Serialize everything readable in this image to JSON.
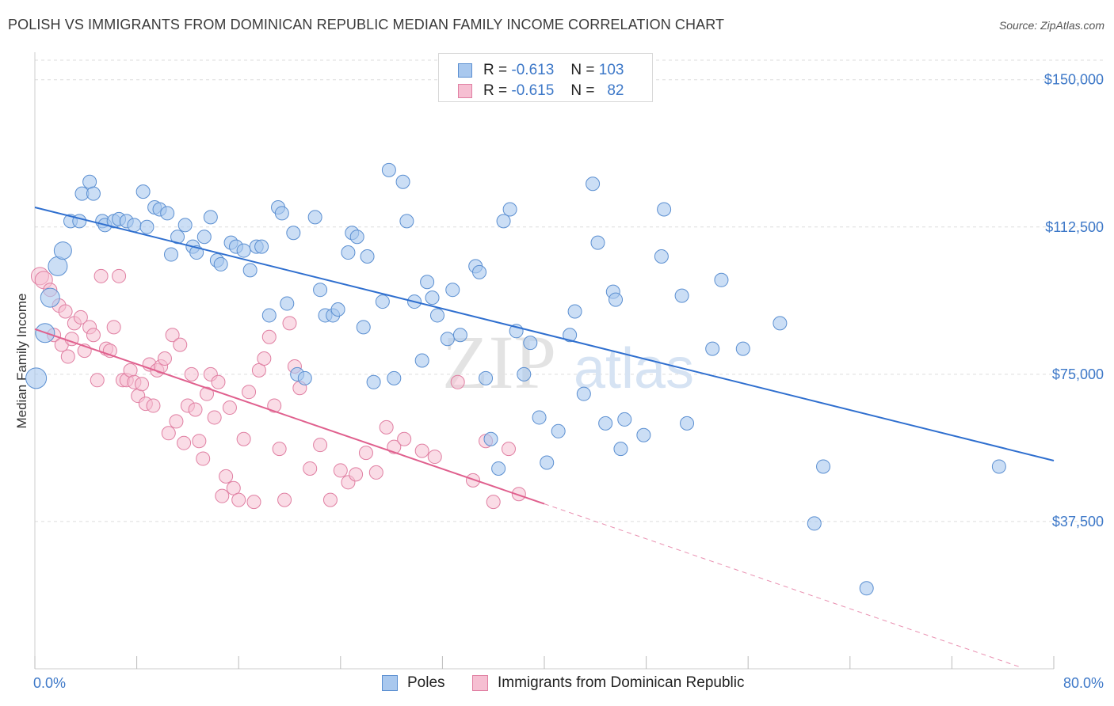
{
  "title": "POLISH VS IMMIGRANTS FROM DOMINICAN REPUBLIC MEDIAN FAMILY INCOME CORRELATION CHART",
  "source": "Source: ZipAtlas.com",
  "watermark": {
    "zip": "ZIP",
    "atlas": "atlas"
  },
  "stats": {
    "poles": {
      "r_label": "R =",
      "r_value": "-0.613",
      "n_label": "N =",
      "n_value": "103"
    },
    "dominican": {
      "r_label": "R =",
      "r_value": "-0.615",
      "n_label": "N =",
      "n_value": "82"
    }
  },
  "legend": {
    "poles": "Poles",
    "dominican": "Immigrants from Dominican Republic"
  },
  "colors": {
    "poles_fill": "#a9c8ee",
    "poles_stroke": "#5b8fd1",
    "poles_line": "#2f6fcf",
    "dom_fill": "#f6bfd2",
    "dom_stroke": "#e07fa2",
    "dom_line": "#e0608e",
    "tick_text": "#3d78c8",
    "grid": "#dddddd"
  },
  "chart_data": {
    "type": "scatter",
    "title": "POLISH VS IMMIGRANTS FROM DOMINICAN REPUBLIC MEDIAN FAMILY INCOME CORRELATION CHART",
    "xlabel": "",
    "ylabel": "Median Family Income",
    "xlim": [
      0,
      80
    ],
    "ylim": [
      0,
      157000
    ],
    "x_tick_labels": [
      "0.0%",
      "80.0%"
    ],
    "y_ticks": [
      37500,
      75000,
      112500,
      150000
    ],
    "y_tick_labels": [
      "$37,500",
      "$75,000",
      "$112,500",
      "$150,000"
    ],
    "grid": true,
    "series": [
      {
        "name": "Poles",
        "trend": {
          "x": [
            0,
            80
          ],
          "y": [
            117500,
            53000
          ]
        },
        "points": [
          [
            0.1,
            74000
          ],
          [
            0.8,
            85500
          ],
          [
            1.2,
            94500
          ],
          [
            1.8,
            102500
          ],
          [
            2.2,
            106500
          ],
          [
            2.8,
            114000
          ],
          [
            3.5,
            114000
          ],
          [
            3.7,
            121000
          ],
          [
            4.3,
            124000
          ],
          [
            4.6,
            121000
          ],
          [
            5.3,
            114000
          ],
          [
            5.5,
            113000
          ],
          [
            6.2,
            114000
          ],
          [
            6.6,
            114500
          ],
          [
            7.2,
            114000
          ],
          [
            7.8,
            113000
          ],
          [
            8.5,
            121500
          ],
          [
            8.8,
            112500
          ],
          [
            9.4,
            117500
          ],
          [
            9.8,
            117000
          ],
          [
            10.4,
            116000
          ],
          [
            10.7,
            105500
          ],
          [
            11.2,
            110000
          ],
          [
            11.8,
            113000
          ],
          [
            12.4,
            107500
          ],
          [
            12.7,
            106000
          ],
          [
            13.3,
            110000
          ],
          [
            13.8,
            115000
          ],
          [
            14.3,
            104000
          ],
          [
            14.6,
            103000
          ],
          [
            15.4,
            108500
          ],
          [
            15.8,
            107500
          ],
          [
            16.4,
            106500
          ],
          [
            16.9,
            101500
          ],
          [
            17.4,
            107500
          ],
          [
            17.8,
            107500
          ],
          [
            18.4,
            90000
          ],
          [
            19.1,
            117500
          ],
          [
            19.4,
            116000
          ],
          [
            19.8,
            93000
          ],
          [
            20.3,
            111000
          ],
          [
            20.6,
            75000
          ],
          [
            21.2,
            74000
          ],
          [
            22.0,
            115000
          ],
          [
            22.4,
            96500
          ],
          [
            22.8,
            90000
          ],
          [
            23.4,
            90000
          ],
          [
            23.8,
            91500
          ],
          [
            24.6,
            106000
          ],
          [
            24.9,
            111000
          ],
          [
            25.3,
            110000
          ],
          [
            25.8,
            87000
          ],
          [
            26.1,
            105000
          ],
          [
            26.6,
            73000
          ],
          [
            27.3,
            93500
          ],
          [
            27.8,
            127000
          ],
          [
            28.2,
            74000
          ],
          [
            28.9,
            124000
          ],
          [
            29.2,
            114000
          ],
          [
            29.8,
            93500
          ],
          [
            30.4,
            78500
          ],
          [
            30.8,
            98500
          ],
          [
            31.2,
            94500
          ],
          [
            31.6,
            90000
          ],
          [
            32.4,
            84000
          ],
          [
            32.8,
            96500
          ],
          [
            33.4,
            85000
          ],
          [
            34.6,
            102500
          ],
          [
            34.9,
            101000
          ],
          [
            35.4,
            74000
          ],
          [
            35.8,
            58500
          ],
          [
            36.4,
            51000
          ],
          [
            36.8,
            114000
          ],
          [
            37.3,
            117000
          ],
          [
            37.8,
            86000
          ],
          [
            38.4,
            75000
          ],
          [
            38.9,
            83000
          ],
          [
            39.6,
            64000
          ],
          [
            40.2,
            52500
          ],
          [
            41.1,
            60500
          ],
          [
            42.0,
            85000
          ],
          [
            42.4,
            91000
          ],
          [
            43.1,
            70000
          ],
          [
            43.8,
            123500
          ],
          [
            44.2,
            108500
          ],
          [
            44.8,
            62500
          ],
          [
            45.4,
            96000
          ],
          [
            45.6,
            94000
          ],
          [
            46.0,
            56000
          ],
          [
            46.3,
            63500
          ],
          [
            47.8,
            59500
          ],
          [
            49.2,
            105000
          ],
          [
            49.4,
            117000
          ],
          [
            50.8,
            95000
          ],
          [
            51.2,
            62500
          ],
          [
            53.2,
            81500
          ],
          [
            53.9,
            99000
          ],
          [
            55.6,
            81500
          ],
          [
            58.5,
            88000
          ],
          [
            61.2,
            37000
          ],
          [
            61.9,
            51500
          ],
          [
            65.3,
            20500
          ],
          [
            75.7,
            51500
          ]
        ]
      },
      {
        "name": "Immigrants from Dominican Republic",
        "trend": {
          "x": [
            0,
            40
          ],
          "y": [
            86500,
            42000
          ]
        },
        "trend_dashed": {
          "x": [
            40,
            80
          ],
          "y": [
            42000,
            -2500
          ]
        },
        "points": [
          [
            0.4,
            100000
          ],
          [
            0.7,
            99000
          ],
          [
            1.2,
            96500
          ],
          [
            1.5,
            85000
          ],
          [
            1.9,
            92500
          ],
          [
            2.1,
            82500
          ],
          [
            2.4,
            91000
          ],
          [
            2.6,
            79500
          ],
          [
            2.9,
            84000
          ],
          [
            3.1,
            88000
          ],
          [
            3.6,
            89500
          ],
          [
            3.9,
            81000
          ],
          [
            4.3,
            87000
          ],
          [
            4.6,
            85000
          ],
          [
            4.9,
            73500
          ],
          [
            5.2,
            100000
          ],
          [
            5.6,
            81500
          ],
          [
            5.9,
            81000
          ],
          [
            6.2,
            87000
          ],
          [
            6.6,
            100000
          ],
          [
            6.9,
            73500
          ],
          [
            7.2,
            73500
          ],
          [
            7.5,
            76000
          ],
          [
            7.8,
            73000
          ],
          [
            8.1,
            69500
          ],
          [
            8.4,
            72500
          ],
          [
            8.7,
            67500
          ],
          [
            9.0,
            77500
          ],
          [
            9.3,
            67000
          ],
          [
            9.6,
            76000
          ],
          [
            9.9,
            77000
          ],
          [
            10.2,
            79000
          ],
          [
            10.5,
            60000
          ],
          [
            10.8,
            85000
          ],
          [
            11.1,
            63000
          ],
          [
            11.4,
            82500
          ],
          [
            11.7,
            57500
          ],
          [
            12.0,
            67000
          ],
          [
            12.3,
            75000
          ],
          [
            12.6,
            66000
          ],
          [
            12.9,
            58000
          ],
          [
            13.2,
            53500
          ],
          [
            13.5,
            70000
          ],
          [
            13.8,
            75000
          ],
          [
            14.1,
            64000
          ],
          [
            14.4,
            73000
          ],
          [
            14.7,
            44000
          ],
          [
            15.0,
            49000
          ],
          [
            15.3,
            66500
          ],
          [
            15.6,
            46000
          ],
          [
            16.0,
            43000
          ],
          [
            16.4,
            58500
          ],
          [
            16.8,
            70500
          ],
          [
            17.2,
            42500
          ],
          [
            17.6,
            76000
          ],
          [
            18.0,
            79000
          ],
          [
            18.4,
            84500
          ],
          [
            18.8,
            67000
          ],
          [
            19.2,
            56000
          ],
          [
            19.6,
            43000
          ],
          [
            20.0,
            88000
          ],
          [
            20.4,
            77000
          ],
          [
            20.8,
            71500
          ],
          [
            21.6,
            51000
          ],
          [
            22.4,
            57000
          ],
          [
            23.2,
            43000
          ],
          [
            24.0,
            50500
          ],
          [
            24.6,
            47500
          ],
          [
            25.2,
            49500
          ],
          [
            26.0,
            55000
          ],
          [
            26.8,
            50000
          ],
          [
            27.6,
            61500
          ],
          [
            28.2,
            56500
          ],
          [
            29.0,
            58500
          ],
          [
            30.4,
            55500
          ],
          [
            31.4,
            54000
          ],
          [
            33.2,
            73000
          ],
          [
            34.4,
            48000
          ],
          [
            35.4,
            58000
          ],
          [
            36.0,
            42500
          ],
          [
            37.2,
            56000
          ],
          [
            38.0,
            44500
          ]
        ]
      }
    ]
  }
}
